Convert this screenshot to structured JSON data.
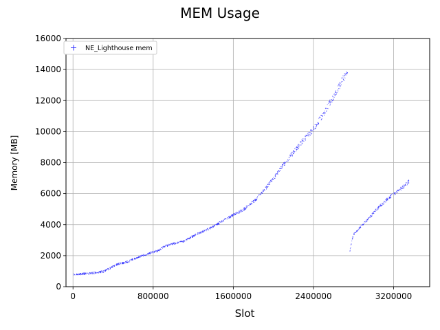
{
  "chart_data": {
    "type": "scatter",
    "title": "MEM Usage",
    "xlabel": "Slot",
    "ylabel": "Memory [MB]",
    "xlim": [
      -70000,
      3560000
    ],
    "ylim": [
      0,
      16000
    ],
    "x_ticks": [
      0,
      800000,
      1600000,
      2400000,
      3200000
    ],
    "y_ticks": [
      0,
      2000,
      4000,
      6000,
      8000,
      10000,
      12000,
      14000,
      16000
    ],
    "grid": true,
    "legend": {
      "location": "upper-left",
      "entries": [
        "NE_Lighthouse mem"
      ]
    },
    "series": [
      {
        "name": "NE_Lighthouse mem",
        "color": "#3333ff",
        "marker": "+",
        "segments": [
          {
            "x": [
              0,
              100000,
              200000,
              300000,
              350000,
              400000,
              450000,
              500000,
              550000,
              600000,
              700000,
              800000,
              850000,
              900000,
              1000000,
              1100000,
              1200000,
              1300000,
              1400000,
              1500000,
              1600000,
              1700000,
              1800000,
              1900000,
              2000000,
              2100000,
              2200000,
              2300000,
              2400000,
              2500000,
              2600000,
              2700000,
              2740000
            ],
            "y": [
              800,
              850,
              900,
              1000,
              1150,
              1350,
              1500,
              1550,
              1650,
              1800,
              2050,
              2250,
              2350,
              2600,
              2800,
              2950,
              3300,
              3600,
              3900,
              4300,
              4650,
              5000,
              5500,
              6200,
              7000,
              7900,
              8700,
              9500,
              10200,
              11200,
              12300,
              13500,
              14000
            ]
          },
          {
            "x": [
              2760000,
              2780000,
              2800000,
              2850000,
              2900000,
              2950000,
              3000000,
              3050000,
              3100000,
              3150000,
              3200000,
              3250000,
              3300000,
              3350000
            ],
            "y": [
              2300,
              3000,
              3400,
              3750,
              4100,
              4400,
              4800,
              5150,
              5450,
              5750,
              6000,
              6250,
              6500,
              6800
            ]
          }
        ]
      }
    ]
  }
}
